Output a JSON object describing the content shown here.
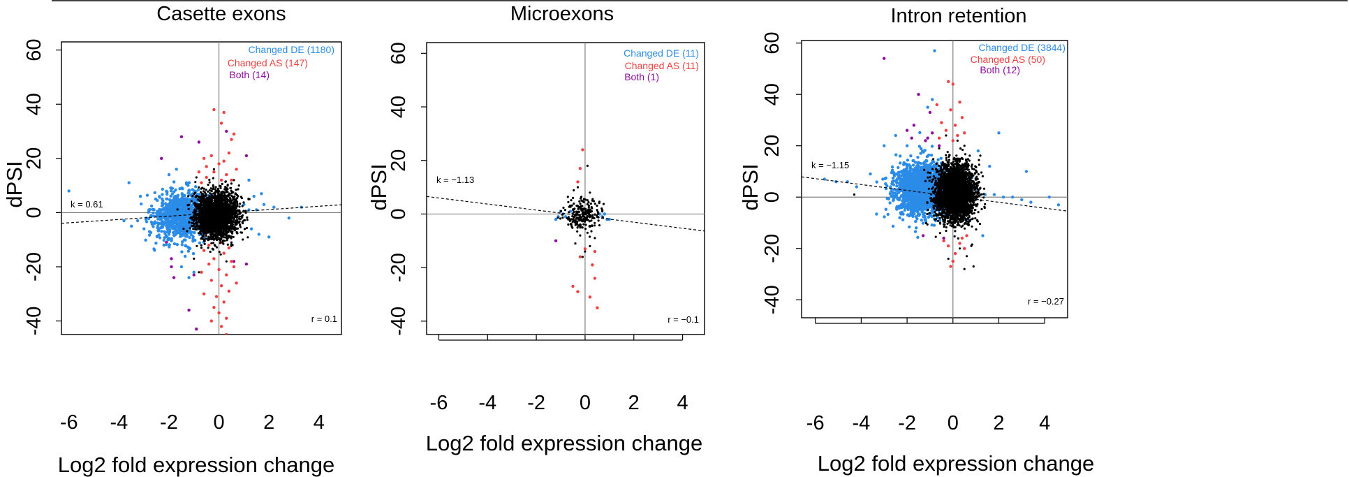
{
  "colors": {
    "changed_de": "#2b8ce8",
    "changed_as": "#f24040",
    "both": "#8e0ea0",
    "other": "#000000",
    "refline": "#808080"
  },
  "chart_data": [
    {
      "type": "scatter",
      "title": "Casette exons",
      "xlabel": "Log2 fold expression change",
      "ylabel": "dPSI",
      "xlim": [
        -6.3,
        4.9
      ],
      "ylim": [
        -45,
        63
      ],
      "xticks": [
        -6,
        -4,
        -2,
        0,
        2,
        4
      ],
      "yticks": [
        -40,
        -20,
        0,
        20,
        40,
        60
      ],
      "legend_position": "top-right",
      "legend": [
        {
          "key": "de",
          "label": "Changed DE (1180)"
        },
        {
          "key": "as",
          "label": "Changed AS (147)"
        },
        {
          "key": "both",
          "label": "Both (14)"
        }
      ],
      "slope_label": "k = 0.61",
      "slope": 0.61,
      "intercept": -0.1,
      "slope_label_at": [
        -5.9,
        -1.5
      ],
      "r_label": "r = 0.1",
      "series": [
        {
          "key": "both",
          "points": [
            [
              -2.3,
              20
            ],
            [
              -1.5,
              28
            ],
            [
              0.3,
              30
            ],
            [
              1.1,
              21
            ],
            [
              -1.9,
              -17
            ],
            [
              -2.1,
              -11
            ],
            [
              -1.8,
              -24
            ],
            [
              -1.9,
              -20
            ],
            [
              -1.2,
              -36
            ],
            [
              1.1,
              -19
            ],
            [
              -0.9,
              -43
            ],
            [
              -1.0,
              -23
            ],
            [
              -0.8,
              26
            ],
            [
              0.6,
              -18
            ]
          ]
        },
        {
          "key": "as",
          "points": [
            [
              -0.2,
              38
            ],
            [
              0.2,
              37
            ],
            [
              0.1,
              33
            ],
            [
              0.6,
              29
            ],
            [
              0.5,
              27
            ],
            [
              -0.6,
              20
            ],
            [
              -0.3,
              21
            ],
            [
              0.2,
              19
            ],
            [
              0.4,
              22
            ],
            [
              -0.5,
              17
            ],
            [
              0.0,
              18
            ],
            [
              0.7,
              16
            ],
            [
              -0.8,
              15
            ],
            [
              -0.2,
              15
            ],
            [
              0.3,
              14
            ],
            [
              -0.5,
              13
            ],
            [
              0.1,
              12
            ],
            [
              0.5,
              12
            ],
            [
              -0.7,
              11
            ],
            [
              -0.4,
              -12
            ],
            [
              0.1,
              -11
            ],
            [
              0.4,
              -13
            ],
            [
              -0.6,
              -14
            ],
            [
              0.2,
              -15
            ],
            [
              -0.2,
              -17
            ],
            [
              0.5,
              -18
            ],
            [
              -0.4,
              -19
            ],
            [
              0.0,
              -21
            ],
            [
              0.3,
              -23
            ],
            [
              -0.3,
              -25
            ],
            [
              0.1,
              -27
            ],
            [
              0.4,
              -29
            ],
            [
              -0.1,
              -31
            ],
            [
              0.2,
              -33
            ],
            [
              -0.2,
              -35
            ],
            [
              0.0,
              -37
            ],
            [
              0.3,
              -39
            ],
            [
              -0.3,
              -40
            ],
            [
              0.1,
              -42
            ],
            [
              0.3,
              -45
            ],
            [
              0.6,
              -20
            ],
            [
              -0.7,
              -22
            ],
            [
              0.7,
              -26
            ],
            [
              -0.6,
              -30
            ]
          ]
        },
        {
          "key": "de",
          "cloud": {
            "n": 900,
            "cx": -1.5,
            "sx": 0.55,
            "cy": -1.0,
            "sy": 4.5
          },
          "points": [
            [
              -6.0,
              8
            ],
            [
              -3.6,
              11
            ],
            [
              -3.8,
              -3
            ],
            [
              -3.5,
              -5
            ],
            [
              -2.8,
              1
            ],
            [
              -2.6,
              -4
            ],
            [
              -2.0,
              14
            ],
            [
              -1.7,
              16
            ],
            [
              -1.3,
              11
            ],
            [
              -2.2,
              -12
            ],
            [
              -1.5,
              -20
            ],
            [
              -1.2,
              -24
            ],
            [
              -1.0,
              -22
            ],
            [
              -2.0,
              -8
            ],
            [
              1.0,
              3
            ],
            [
              1.2,
              1
            ],
            [
              1.5,
              1
            ],
            [
              1.8,
              3
            ],
            [
              2.2,
              2
            ],
            [
              2.8,
              -2
            ],
            [
              3.3,
              2
            ],
            [
              1.3,
              -6
            ],
            [
              1.6,
              -8
            ],
            [
              2.0,
              -9
            ],
            [
              1.4,
              6
            ],
            [
              1.7,
              7
            ],
            [
              1.2,
              12
            ],
            [
              -2.4,
              -6
            ],
            [
              -2.9,
              -2
            ],
            [
              -3.0,
              -6
            ]
          ]
        },
        {
          "key": "other",
          "cloud": {
            "n": 2400,
            "cx": -0.1,
            "sx": 0.42,
            "cy": -1.0,
            "sy": 4.2
          },
          "points": [
            [
              -0.9,
              13
            ],
            [
              0.6,
              12
            ],
            [
              -0.7,
              -13
            ],
            [
              0.5,
              -11
            ],
            [
              -1.0,
              -17
            ],
            [
              0.3,
              -18
            ],
            [
              -0.2,
              16
            ],
            [
              0.8,
              10
            ],
            [
              -0.8,
              -22
            ]
          ]
        }
      ]
    },
    {
      "type": "scatter",
      "title": "Microexons",
      "xlabel": "Log2 fold expression change",
      "ylabel": "dPSI",
      "xlim": [
        -6.5,
        4.9
      ],
      "ylim": [
        -45,
        64
      ],
      "xticks": [
        -6,
        -4,
        -2,
        0,
        2,
        4
      ],
      "yticks": [
        -40,
        -20,
        0,
        20,
        40,
        60
      ],
      "legend_position": "top-right",
      "legend": [
        {
          "key": "de",
          "label": "Changed DE (11)"
        },
        {
          "key": "as",
          "label": "Changed AS (11)"
        },
        {
          "key": "both",
          "label": "Both (1)"
        }
      ],
      "slope_label": "k = −1.13",
      "slope": -1.13,
      "intercept": -0.8,
      "slope_label_at": [
        -6.1,
        8.2
      ],
      "r_label": "r = −0.1",
      "series": [
        {
          "key": "both",
          "points": [
            [
              -1.2,
              -10
            ]
          ]
        },
        {
          "key": "as",
          "points": [
            [
              -0.1,
              24
            ],
            [
              -0.2,
              17
            ],
            [
              -0.3,
              12
            ],
            [
              0.0,
              -13
            ],
            [
              0.4,
              -14
            ],
            [
              -0.2,
              -16
            ],
            [
              0.3,
              -19
            ],
            [
              0.4,
              -24
            ],
            [
              -0.5,
              -27
            ],
            [
              -0.3,
              -29
            ],
            [
              0.2,
              -31
            ],
            [
              0.5,
              -35
            ]
          ]
        },
        {
          "key": "de",
          "points": [
            [
              -1.1,
              -1
            ],
            [
              -0.9,
              0
            ],
            [
              -1.0,
              1
            ],
            [
              -0.8,
              -1
            ],
            [
              0.7,
              -1
            ],
            [
              0.9,
              -2
            ],
            [
              0.6,
              0
            ],
            [
              -1.2,
              -2
            ],
            [
              -0.6,
              1
            ],
            [
              1.0,
              -2
            ],
            [
              0.8,
              0
            ]
          ]
        },
        {
          "key": "other",
          "cloud": {
            "n": 220,
            "cx": -0.1,
            "sx": 0.35,
            "cy": 0.0,
            "sy": 2.8
          },
          "points": [
            [
              0.1,
              18
            ],
            [
              -0.3,
              10
            ],
            [
              0.2,
              8
            ],
            [
              -0.5,
              6
            ],
            [
              0.3,
              5
            ],
            [
              -0.2,
              -8
            ],
            [
              0.1,
              -7
            ],
            [
              0.4,
              -9
            ],
            [
              -0.4,
              -11
            ],
            [
              0.2,
              -12
            ],
            [
              0.0,
              -14
            ],
            [
              -0.1,
              -16
            ]
          ]
        }
      ]
    },
    {
      "type": "scatter",
      "title": "Intron retention",
      "xlabel": "Log2 fold expression change",
      "ylabel": "dPSI",
      "xlim": [
        -6.6,
        5.0
      ],
      "ylim": [
        -47,
        61
      ],
      "xticks": [
        -6,
        -4,
        -2,
        0,
        2,
        4
      ],
      "yticks": [
        -40,
        -20,
        0,
        20,
        40,
        60
      ],
      "legend_position": "top-right",
      "legend": [
        {
          "key": "de",
          "label": "Changed DE (3844)"
        },
        {
          "key": "as",
          "label": "Changed AS (50)"
        },
        {
          "key": "both",
          "label": "Both (12)"
        }
      ],
      "slope_label": "k = −1.15",
      "slope": -1.15,
      "intercept": 0.3,
      "slope_label_at": [
        -6.2,
        8.2
      ],
      "r_label": "r = −0.27",
      "series": [
        {
          "key": "both",
          "points": [
            [
              -3.0,
              54
            ],
            [
              -1.5,
              40
            ],
            [
              -1.0,
              33
            ],
            [
              -1.7,
              28
            ],
            [
              -2.0,
              26
            ],
            [
              -1.1,
              23
            ],
            [
              -0.6,
              20
            ],
            [
              -1.8,
              23
            ],
            [
              -1.3,
              -15
            ],
            [
              -0.4,
              -16
            ],
            [
              -1.2,
              22
            ],
            [
              -0.9,
              25
            ]
          ]
        },
        {
          "key": "as",
          "points": [
            [
              -0.2,
              45
            ],
            [
              0.0,
              44
            ],
            [
              -0.7,
              36
            ],
            [
              0.3,
              37
            ],
            [
              -0.1,
              34
            ],
            [
              0.4,
              31
            ],
            [
              -0.5,
              29
            ],
            [
              0.1,
              28
            ],
            [
              0.5,
              25
            ],
            [
              -0.3,
              26
            ],
            [
              0.2,
              24
            ],
            [
              -0.6,
              23
            ],
            [
              0.0,
              22
            ],
            [
              0.3,
              -18
            ],
            [
              0.5,
              -20
            ],
            [
              -0.2,
              -19
            ],
            [
              0.1,
              -22
            ],
            [
              0.4,
              -16
            ],
            [
              -0.4,
              -17
            ],
            [
              0.6,
              -15
            ],
            [
              0.0,
              -25
            ],
            [
              -0.1,
              -27
            ]
          ]
        },
        {
          "key": "de",
          "cloud": {
            "n": 1800,
            "cx": -1.3,
            "sx": 0.6,
            "cy": 3.0,
            "sy": 5.0
          },
          "points": [
            [
              -0.8,
              57
            ],
            [
              -0.9,
              38
            ],
            [
              -1.1,
              35
            ],
            [
              -2.5,
              24
            ],
            [
              -3.0,
              20
            ],
            [
              -3.6,
              9
            ],
            [
              -4.6,
              6
            ],
            [
              -5.1,
              6
            ],
            [
              -5.6,
              7
            ],
            [
              -4.2,
              4
            ],
            [
              1.0,
              3
            ],
            [
              1.4,
              1
            ],
            [
              1.8,
              1
            ],
            [
              2.2,
              0
            ],
            [
              2.6,
              0
            ],
            [
              3.0,
              -1
            ],
            [
              3.4,
              -2
            ],
            [
              4.6,
              -3
            ],
            [
              4.2,
              0
            ],
            [
              2.0,
              25
            ],
            [
              3.2,
              10
            ],
            [
              1.3,
              -15
            ],
            [
              1.6,
              12
            ],
            [
              1.1,
              18
            ],
            [
              -1.6,
              -12
            ],
            [
              -2.3,
              16
            ],
            [
              -2.0,
              20
            ]
          ]
        },
        {
          "key": "other",
          "cloud": {
            "n": 3000,
            "cx": 0.1,
            "sx": 0.42,
            "cy": 2.0,
            "sy": 5.5
          },
          "points": [
            [
              -0.3,
              24
            ],
            [
              0.2,
              22
            ],
            [
              0.5,
              20
            ],
            [
              -0.6,
              19
            ],
            [
              0.3,
              -20
            ],
            [
              0.6,
              -23
            ],
            [
              0.9,
              -27
            ],
            [
              0.5,
              -28
            ],
            [
              -0.2,
              -24
            ],
            [
              0.8,
              -19
            ],
            [
              -4.3,
              1
            ]
          ]
        }
      ]
    }
  ]
}
